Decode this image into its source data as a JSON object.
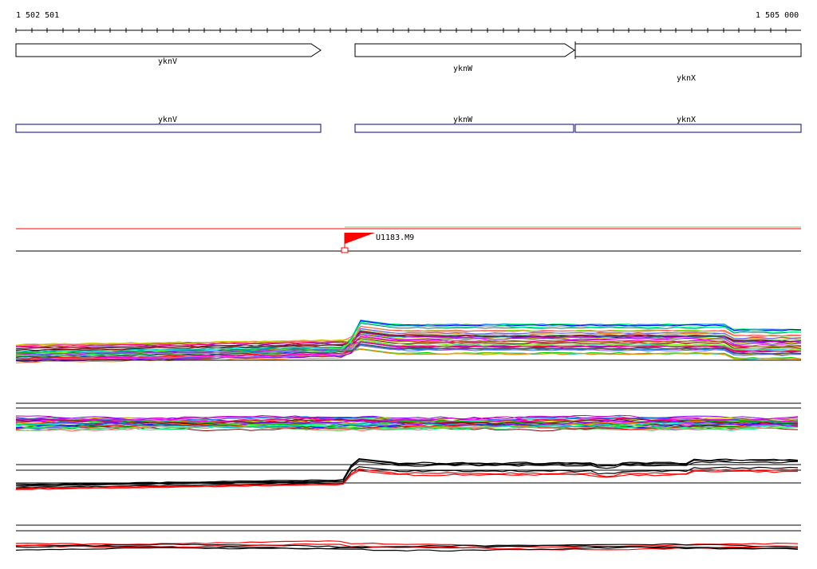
{
  "ruler": {
    "start_label": "1 502 501",
    "end_label": "1 505 000"
  },
  "genes": [
    {
      "name": "yknV",
      "strand": "+"
    },
    {
      "name": "yknW",
      "strand": "+"
    },
    {
      "name": "yknX",
      "strand": "+"
    }
  ],
  "annotations": [
    {
      "name": "yknV"
    },
    {
      "name": "yknW"
    },
    {
      "name": "yknX"
    }
  ],
  "feature": {
    "label": "U1183.M9"
  },
  "colors": {
    "gene_outline": "#000000",
    "annotation_outline": "#00008b",
    "feature_red": "#ff0000",
    "feature_green": "#7fbf7f"
  },
  "tracks": [
    {
      "name": "transcription-profiles-multi"
    },
    {
      "name": "transcription-profiles-flat"
    },
    {
      "name": "transcription-profiles-selected"
    },
    {
      "name": "transcription-profiles-bottom"
    }
  ]
}
